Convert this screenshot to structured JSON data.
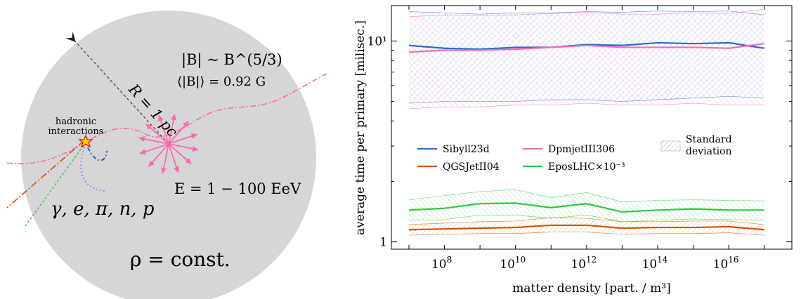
{
  "diagram": {
    "labels": {
      "radius": "R = 1 pc",
      "field_scaling": "|B| ~ B^(5/3)",
      "mean_field": "⟨|B|⟩ = 0.92 G",
      "hadronic": [
        "hadronic",
        "interactions"
      ],
      "energy": "E = 1 − 100 EeV",
      "secondaries": "γ, e, π, n, p",
      "density": "ρ = const."
    },
    "colors": {
      "sphere": "#d6d6d6",
      "primary_track": "#ff69b4",
      "arrow": "#555555",
      "star_fill": "#ffd700",
      "star_edge": "#e01010",
      "orange_track": "#d35400",
      "green_track": "#2ecc40",
      "blue_track": "#1f6fd0",
      "purple_track": "#b27cf6"
    }
  },
  "chart_data": {
    "type": "line",
    "xlabel": "matter density [part. / m³]",
    "ylabel": "average time per primary [milisec.]",
    "xscale": "log",
    "yscale": "log",
    "xlim": [
      3200000.0,
      6e+17
    ],
    "ylim": [
      0.92,
      15
    ],
    "xtick_labels": [
      {
        "value": 100000000.0,
        "base": "10",
        "exp": "8"
      },
      {
        "value": 10000000000.0,
        "base": "10",
        "exp": "10"
      },
      {
        "value": 1000000000000.0,
        "base": "10",
        "exp": "12"
      },
      {
        "value": 100000000000000.0,
        "base": "10",
        "exp": "14"
      },
      {
        "value": 1e+16,
        "base": "10",
        "exp": "16"
      }
    ],
    "ytick_labels": [
      {
        "value": 1,
        "label": "1"
      },
      {
        "value": 10,
        "label": "10¹"
      }
    ],
    "x": [
      10000000.0,
      100000000.0,
      1000000000.0,
      10000000000.0,
      100000000000.0,
      1000000000000.0,
      10000000000000.0,
      100000000000000.0,
      1000000000000000.0,
      1e+16,
      1e+17
    ],
    "legend_placement": "center",
    "series": [
      {
        "name": "Sibyll23d",
        "color": "#1f6fd0",
        "values": [
          9.5,
          9.2,
          9.1,
          9.3,
          9.3,
          9.6,
          9.5,
          9.8,
          9.7,
          9.8,
          9.2
        ],
        "upper": [
          14.0,
          13.8,
          13.6,
          13.8,
          13.8,
          14.0,
          13.9,
          14.1,
          14.0,
          14.1,
          13.5
        ],
        "lower": [
          4.9,
          5.0,
          5.0,
          5.0,
          5.1,
          5.1,
          5.0,
          5.1,
          5.2,
          5.3,
          5.2
        ]
      },
      {
        "name": "QGSJetII04",
        "color": "#d35400",
        "values": [
          1.15,
          1.16,
          1.17,
          1.18,
          1.21,
          1.21,
          1.17,
          1.18,
          1.18,
          1.19,
          1.15
        ],
        "upper": [
          1.22,
          1.24,
          1.26,
          1.27,
          1.32,
          1.31,
          1.26,
          1.26,
          1.27,
          1.27,
          1.22
        ],
        "lower": [
          1.08,
          1.09,
          1.1,
          1.1,
          1.12,
          1.12,
          1.09,
          1.1,
          1.1,
          1.11,
          1.08
        ]
      },
      {
        "name": "DpmjetIII306",
        "color": "#ff69b4",
        "values": [
          8.8,
          9.0,
          9.0,
          9.1,
          9.3,
          9.5,
          9.3,
          9.3,
          9.3,
          9.2,
          9.7
        ],
        "upper": [
          13.2,
          13.5,
          13.4,
          13.5,
          13.7,
          13.9,
          13.6,
          13.6,
          13.8,
          13.7,
          14.4
        ],
        "lower": [
          4.6,
          4.7,
          4.7,
          4.8,
          4.8,
          4.9,
          4.8,
          4.8,
          4.9,
          4.8,
          4.8
        ]
      },
      {
        "name": "EposLHC×10⁻³",
        "color": "#2ecc40",
        "values": [
          1.44,
          1.47,
          1.55,
          1.56,
          1.48,
          1.55,
          1.41,
          1.44,
          1.46,
          1.44,
          1.44
        ],
        "upper": [
          1.62,
          1.7,
          1.78,
          1.82,
          1.66,
          1.76,
          1.58,
          1.61,
          1.62,
          1.61,
          1.6
        ],
        "lower": [
          1.28,
          1.29,
          1.36,
          1.36,
          1.31,
          1.36,
          1.26,
          1.28,
          1.3,
          1.29,
          1.28
        ]
      }
    ],
    "band_legend": [
      "Standard",
      "deviation"
    ]
  }
}
